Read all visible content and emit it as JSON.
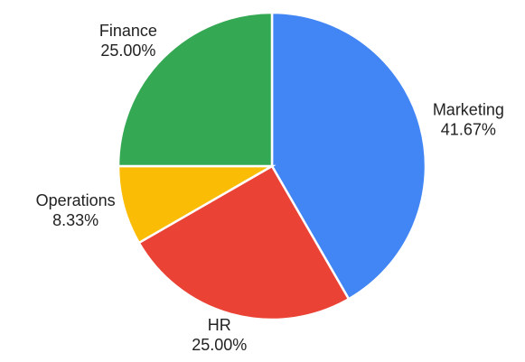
{
  "chart_data": {
    "type": "pie",
    "categories": [
      "Marketing",
      "HR",
      "Operations",
      "Finance"
    ],
    "values": [
      41.67,
      25,
      8.33,
      25
    ],
    "value_labels": [
      "41.67%",
      "25.00%",
      "8.33%",
      "25.00%"
    ],
    "colors": [
      "#4285f4",
      "#ea4335",
      "#fbbc05",
      "#34a853"
    ]
  }
}
